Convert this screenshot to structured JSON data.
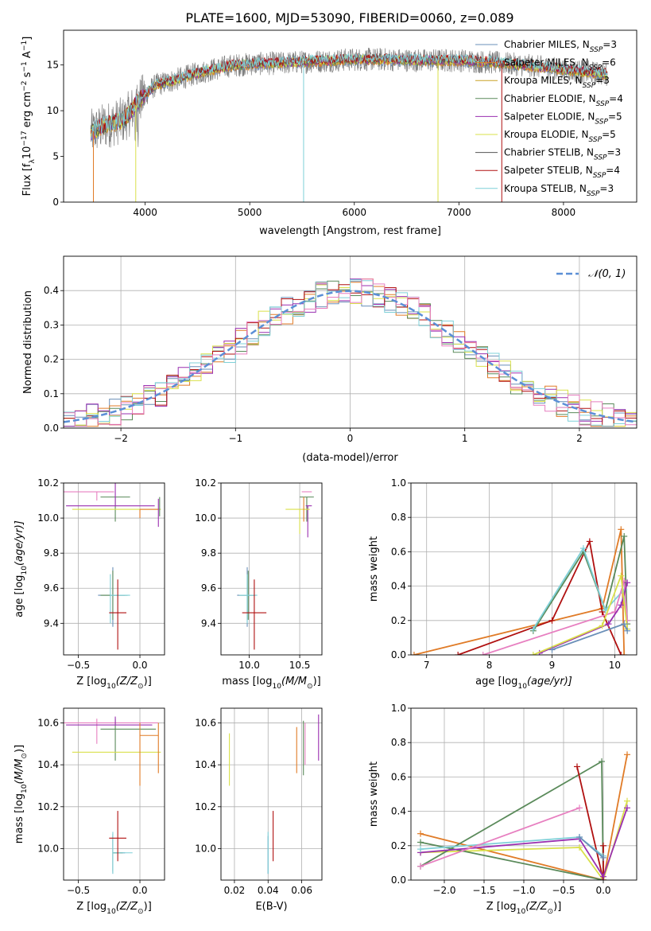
{
  "figure": {
    "title": "PLATE=1600, MJD=53090, FIBERID=0060, z=0.089"
  },
  "chart_data": [
    {
      "type": "line",
      "panel": "spectrum",
      "xlabel": "wavelength [Angstrom, rest frame]",
      "ylabel": "Flux [f",
      "ylabel_parts": [
        "Flux [f",
        "λ",
        "10",
        "−17",
        " erg cm",
        "−2",
        " s",
        "−1",
        " A",
        "−1",
        "]"
      ],
      "xlim": [
        3220,
        8700
      ],
      "ylim": [
        0,
        18.8
      ],
      "xticks": [
        4000,
        5000,
        6000,
        7000,
        8000
      ],
      "yticks": [
        0,
        5,
        10,
        15
      ],
      "grid": false,
      "legend_position": "top-right",
      "continuum_anchors": {
        "x": [
          3480,
          3600,
          3800,
          3950,
          4100,
          4300,
          4500,
          4800,
          5000,
          5300,
          5600,
          6000,
          6300,
          6600,
          7000,
          7300,
          7600,
          8000,
          8400
        ],
        "y": [
          7.6,
          8.3,
          9.0,
          11.2,
          12.8,
          13.4,
          14.1,
          14.9,
          15.1,
          15.2,
          15.4,
          15.6,
          15.6,
          15.5,
          15.5,
          15.3,
          15.0,
          14.5,
          14.0
        ]
      },
      "series": [
        {
          "name": "Chabrier MILES, N",
          "sub": "SSP",
          "tail": "=3",
          "color": "#6a8fb8"
        },
        {
          "name": "Salpeter MILES, N",
          "sub": "SSP",
          "tail": "=6",
          "color": "#e07b27"
        },
        {
          "name": "Kroupa MILES, N",
          "sub": "SSP",
          "tail": "=3",
          "color": "#c9a227"
        },
        {
          "name": "Chabrier ELODIE, N",
          "sub": "SSP",
          "tail": "=4",
          "color": "#5a8a5a"
        },
        {
          "name": "Salpeter ELODIE, N",
          "sub": "SSP",
          "tail": "=5",
          "color": "#9a2fb0"
        },
        {
          "name": "Kroupa ELODIE, N",
          "sub": "SSP",
          "tail": "=5",
          "color": "#d9e04a"
        },
        {
          "name": "Chabrier STELIB, N",
          "sub": "SSP",
          "tail": "=3",
          "color": "#555555"
        },
        {
          "name": "Salpeter STELIB, N",
          "sub": "SSP",
          "tail": "=4",
          "color": "#b01010"
        },
        {
          "name": "Kroupa STELIB, N",
          "sub": "SSP",
          "tail": "=3",
          "color": "#7fd0d8"
        }
      ],
      "data_color": "#808080"
    },
    {
      "type": "bar",
      "panel": "residual-histogram",
      "xlabel": "(data-model)/error",
      "ylabel": "Normed distribution",
      "xlim": [
        -2.5,
        2.5
      ],
      "ylim": [
        0,
        0.5
      ],
      "xticks": [
        -2,
        -1,
        0,
        1,
        2
      ],
      "yticks": [
        0.0,
        0.1,
        0.2,
        0.3,
        0.4
      ],
      "grid": true,
      "legend": "𝒩(0, 1)",
      "legend_position": "top-right",
      "gaussian_color": "#5b8fd6",
      "bin_width": 0.1,
      "colors": [
        "#6a8fb8",
        "#e07b27",
        "#5a8a5a",
        "#9a2fb0",
        "#d9e04a",
        "#b01010",
        "#7fd0d8",
        "#e77fc0"
      ]
    },
    {
      "type": "scatter",
      "panel": "age-vs-Z",
      "xlabel": "Z [log",
      "xlabel_parts": [
        "Z [log",
        "10",
        "(Z/Z",
        "⊙",
        ")]"
      ],
      "ylabel_parts": [
        "age  [log",
        "10",
        "(age/yr)]"
      ],
      "xlim": [
        -0.62,
        0.2
      ],
      "ylim": [
        9.22,
        10.2
      ],
      "xticks": [
        -0.5,
        0.0
      ],
      "yticks": [
        9.4,
        9.6,
        9.8,
        10.0,
        10.2
      ],
      "grid": true,
      "points": [
        {
          "x": -0.22,
          "y": 9.56,
          "xerr": [
            0.12,
            0.1
          ],
          "yerr": [
            0.18,
            0.16
          ],
          "color": "#6a8fb8"
        },
        {
          "x": -0.22,
          "y": 9.56,
          "xerr": [
            0.1,
            0.12
          ],
          "yerr": [
            0.14,
            0.14
          ],
          "color": "#5a8a5a"
        },
        {
          "x": -0.24,
          "y": 9.56,
          "xerr": [
            0.0,
            0.16
          ],
          "yerr": [
            0.16,
            0.12
          ],
          "color": "#7fd0d8"
        },
        {
          "x": -0.18,
          "y": 9.46,
          "xerr": [
            0.07,
            0.07
          ],
          "yerr": [
            0.21,
            0.19
          ],
          "color": "#b01010"
        },
        {
          "x": -0.35,
          "y": 10.15,
          "xerr": [
            0.27,
            0.14
          ],
          "yerr": [
            0.05,
            0.0
          ],
          "color": "#e77fc0"
        },
        {
          "x": -0.2,
          "y": 10.12,
          "xerr": [
            0.12,
            0.12
          ],
          "yerr": [
            0.14,
            0.0
          ],
          "color": "#5a8a5a"
        },
        {
          "x": -0.2,
          "y": 10.07,
          "xerr": [
            0.4,
            0.32
          ],
          "yerr": [
            0.0,
            0.18
          ],
          "color": "#9a2fb0"
        },
        {
          "x": -0.25,
          "y": 10.05,
          "xerr": [
            0.3,
            0.42
          ],
          "yerr": [
            0.0,
            0.0
          ],
          "color": "#d9e04a"
        },
        {
          "x": 0.0,
          "y": 10.05,
          "xerr": [
            0.0,
            0.15
          ],
          "yerr": [
            0.05,
            0.0
          ],
          "color": "#e07b27"
        },
        {
          "x": 0.15,
          "y": 10.05,
          "xerr": [
            0.0,
            0.0
          ],
          "yerr": [
            0.1,
            0.06
          ],
          "color": "#9a2fb0"
        },
        {
          "x": 0.16,
          "y": 10.07,
          "xerr": [
            0.0,
            0.0
          ],
          "yerr": [
            0.06,
            0.05
          ],
          "color": "#5a8a5a"
        }
      ]
    },
    {
      "type": "scatter",
      "panel": "age-vs-mass",
      "xlabel_parts": [
        "mass [log",
        "10",
        "(M/M",
        "⊙",
        ")]"
      ],
      "xlim": [
        9.72,
        10.72
      ],
      "ylim": [
        9.22,
        10.2
      ],
      "xticks": [
        10.0,
        10.5
      ],
      "yticks": [
        9.4,
        9.6,
        9.8,
        10.0,
        10.2
      ],
      "grid": true,
      "points": [
        {
          "x": 9.98,
          "y": 9.56,
          "xerr": [
            0.1,
            0.08
          ],
          "yerr": [
            0.18,
            0.16
          ],
          "color": "#6a8fb8"
        },
        {
          "x": 9.99,
          "y": 9.56,
          "xerr": [
            0.09,
            0.07
          ],
          "yerr": [
            0.14,
            0.14
          ],
          "color": "#5a8a5a"
        },
        {
          "x": 9.98,
          "y": 9.56,
          "xerr": [
            0.08,
            0.1
          ],
          "yerr": [
            0.16,
            0.12
          ],
          "color": "#7fd0d8"
        },
        {
          "x": 10.05,
          "y": 9.46,
          "xerr": [
            0.12,
            0.12
          ],
          "yerr": [
            0.21,
            0.19
          ],
          "color": "#b01010"
        },
        {
          "x": 10.57,
          "y": 10.12,
          "xerr": [
            0.07,
            0.07
          ],
          "yerr": [
            0.14,
            0.0
          ],
          "color": "#5a8a5a"
        },
        {
          "x": 10.58,
          "y": 10.07,
          "xerr": [
            0.02,
            0.04
          ],
          "yerr": [
            0.18,
            0.0
          ],
          "color": "#9a2fb0"
        },
        {
          "x": 10.57,
          "y": 10.15,
          "xerr": [
            0.05,
            0.05
          ],
          "yerr": [
            0.0,
            0.0
          ],
          "color": "#e77fc0"
        },
        {
          "x": 10.5,
          "y": 10.05,
          "xerr": [
            0.14,
            0.1
          ],
          "yerr": [
            0.14,
            0.0
          ],
          "color": "#d9e04a"
        },
        {
          "x": 10.54,
          "y": 10.06,
          "xerr": [
            0.0,
            0.0
          ],
          "yerr": [
            0.08,
            0.06
          ],
          "color": "#e07b27"
        }
      ]
    },
    {
      "type": "line",
      "panel": "mass-weight-vs-age",
      "xlabel_parts": [
        "age  [log",
        "10",
        "(age/yr)]"
      ],
      "ylabel": "mass weight",
      "xlim": [
        6.75,
        10.35
      ],
      "ylim": [
        0,
        1.0
      ],
      "xticks": [
        7,
        8,
        9,
        10
      ],
      "yticks": [
        0.0,
        0.2,
        0.4,
        0.6,
        0.8,
        1.0
      ],
      "grid": true,
      "series": [
        {
          "color": "#e07b27",
          "x": [
            6.8,
            9.8,
            10.1,
            10.15
          ],
          "y": [
            0.0,
            0.27,
            0.73,
            0.0
          ]
        },
        {
          "color": "#b01010",
          "x": [
            7.5,
            9.0,
            9.6,
            9.8,
            10.1
          ],
          "y": [
            0.0,
            0.2,
            0.66,
            0.25,
            0.0
          ]
        },
        {
          "color": "#5a8a5a",
          "x": [
            8.7,
            9.5,
            9.85,
            10.15,
            10.2
          ],
          "y": [
            0.14,
            0.6,
            0.26,
            0.69,
            0.18
          ]
        },
        {
          "color": "#7fd0d8",
          "x": [
            8.7,
            9.5,
            9.85,
            10.15,
            10.2
          ],
          "y": [
            0.15,
            0.62,
            0.26,
            0.38,
            0.2
          ]
        },
        {
          "color": "#e77fc0",
          "x": [
            7.9,
            10.0,
            10.15,
            10.2
          ],
          "y": [
            0.0,
            0.25,
            0.43,
            0.2
          ]
        },
        {
          "color": "#9a2fb0",
          "x": [
            8.8,
            9.9,
            10.1,
            10.2
          ],
          "y": [
            0.01,
            0.18,
            0.29,
            0.42
          ]
        },
        {
          "color": "#d9e04a",
          "x": [
            8.7,
            9.8,
            10.1,
            10.2
          ],
          "y": [
            0.0,
            0.17,
            0.46,
            0.15
          ]
        },
        {
          "color": "#6a8fb8",
          "x": [
            9.0,
            10.15,
            10.2
          ],
          "y": [
            0.03,
            0.18,
            0.14
          ]
        }
      ]
    },
    {
      "type": "scatter",
      "panel": "mass-vs-Z",
      "xlabel_parts": [
        "Z [log",
        "10",
        "(Z/Z",
        "⊙",
        ")]"
      ],
      "ylabel_parts": [
        "mass [log",
        "10",
        "(M/M",
        "⊙",
        ")]"
      ],
      "xlim": [
        -0.62,
        0.2
      ],
      "ylim": [
        9.85,
        10.67
      ],
      "xticks": [
        -0.5,
        0.0
      ],
      "yticks": [
        10.0,
        10.2,
        10.4,
        10.6
      ],
      "grid": true,
      "points": [
        {
          "x": -0.22,
          "y": 9.98,
          "xerr": [
            0.0,
            0.1
          ],
          "yerr": [
            0.1,
            0.08
          ],
          "color": "#6a8fb8"
        },
        {
          "x": -0.22,
          "y": 9.98,
          "xerr": [
            0.0,
            0.08
          ],
          "yerr": [
            0.09,
            0.09
          ],
          "color": "#5a8a5a"
        },
        {
          "x": -0.22,
          "y": 9.98,
          "xerr": [
            0.0,
            0.16
          ],
          "yerr": [
            0.1,
            0.1
          ],
          "color": "#7fd0d8"
        },
        {
          "x": -0.18,
          "y": 10.05,
          "xerr": [
            0.07,
            0.07
          ],
          "yerr": [
            0.11,
            0.13
          ],
          "color": "#b01010"
        },
        {
          "x": -0.35,
          "y": 10.6,
          "xerr": [
            0.27,
            0.5
          ],
          "yerr": [
            0.1,
            0.02
          ],
          "color": "#e77fc0"
        },
        {
          "x": -0.2,
          "y": 10.57,
          "xerr": [
            0.12,
            0.33
          ],
          "yerr": [
            0.15,
            0.05
          ],
          "color": "#5a8a5a"
        },
        {
          "x": -0.2,
          "y": 10.59,
          "xerr": [
            0.4,
            0.3
          ],
          "yerr": [
            0.0,
            0.04
          ],
          "color": "#9a2fb0"
        },
        {
          "x": -0.25,
          "y": 10.46,
          "xerr": [
            0.3,
            0.42
          ],
          "yerr": [
            0.0,
            0.0
          ],
          "color": "#d9e04a"
        },
        {
          "x": 0.0,
          "y": 10.54,
          "xerr": [
            0.0,
            0.15
          ],
          "yerr": [
            0.24,
            0.06
          ],
          "color": "#e07b27"
        },
        {
          "x": 0.15,
          "y": 10.52,
          "xerr": [
            0.0,
            0.0
          ],
          "yerr": [
            0.16,
            0.08
          ],
          "color": "#e07b27"
        }
      ]
    },
    {
      "type": "scatter",
      "panel": "mass-vs-EBV",
      "xlabel": "E(B-V)",
      "xlim": [
        0.012,
        0.072
      ],
      "ylim": [
        9.85,
        10.67
      ],
      "xticks": [
        0.02,
        0.04,
        0.06
      ],
      "yticks": [
        10.0,
        10.2,
        10.4,
        10.6
      ],
      "grid": true,
      "points": [
        {
          "x": 0.017,
          "y": 10.42,
          "yerr": [
            0.12,
            0.13
          ],
          "color": "#d9e04a"
        },
        {
          "x": 0.04,
          "y": 9.98,
          "yerr": [
            0.1,
            0.08
          ],
          "color": "#6a8fb8"
        },
        {
          "x": 0.04,
          "y": 9.98,
          "yerr": [
            0.1,
            0.1
          ],
          "color": "#7fd0d8"
        },
        {
          "x": 0.043,
          "y": 10.05,
          "yerr": [
            0.11,
            0.13
          ],
          "color": "#b01010"
        },
        {
          "x": 0.057,
          "y": 10.45,
          "yerr": [
            0.09,
            0.13
          ],
          "color": "#e07b27"
        },
        {
          "x": 0.061,
          "y": 10.47,
          "yerr": [
            0.12,
            0.14
          ],
          "color": "#5a8a5a"
        },
        {
          "x": 0.062,
          "y": 10.5,
          "yerr": [
            0.1,
            0.1
          ],
          "color": "#e77fc0"
        },
        {
          "x": 0.07,
          "y": 10.5,
          "yerr": [
            0.08,
            0.14
          ],
          "color": "#9a2fb0"
        }
      ]
    },
    {
      "type": "line",
      "panel": "mass-weight-vs-Z",
      "xlabel_parts": [
        "Z [log",
        "10",
        "(Z/Z",
        "⊙",
        ")]"
      ],
      "ylabel": "mass weight",
      "xlim": [
        -2.42,
        0.42
      ],
      "ylim": [
        0,
        1.0
      ],
      "xticks": [
        -2.0,
        -1.5,
        -1.0,
        -0.5,
        0.0
      ],
      "yticks": [
        0.0,
        0.2,
        0.4,
        0.6,
        0.8,
        1.0
      ],
      "grid": true,
      "series": [
        {
          "color": "#e07b27",
          "x": [
            -2.3,
            0.0,
            0.3
          ],
          "y": [
            0.27,
            0.0,
            0.73
          ]
        },
        {
          "color": "#d9e04a",
          "x": [
            -2.3,
            -0.3,
            0.0,
            0.3
          ],
          "y": [
            0.16,
            0.19,
            0.0,
            0.46
          ]
        },
        {
          "color": "#5a8a5a",
          "x": [
            -2.3,
            -0.02,
            0.0,
            -2.3
          ],
          "y": [
            0.08,
            0.69,
            0.0,
            0.22
          ]
        },
        {
          "color": "#b01010",
          "x": [
            -0.33,
            0.0,
            0.0
          ],
          "y": [
            0.66,
            0.0,
            0.2
          ]
        },
        {
          "color": "#9a2fb0",
          "x": [
            -2.3,
            -0.3,
            0.0,
            0.3
          ],
          "y": [
            0.16,
            0.24,
            0.02,
            0.42
          ]
        },
        {
          "color": "#7fd0d8",
          "x": [
            -2.3,
            -0.3,
            0.0
          ],
          "y": [
            0.18,
            0.25,
            0.14
          ]
        },
        {
          "color": "#e77fc0",
          "x": [
            -2.3,
            -0.3
          ],
          "y": [
            0.08,
            0.42
          ]
        },
        {
          "color": "#6a8fb8",
          "x": [
            -0.3,
            0.0
          ],
          "y": [
            0.25,
            0.13
          ]
        }
      ]
    }
  ]
}
